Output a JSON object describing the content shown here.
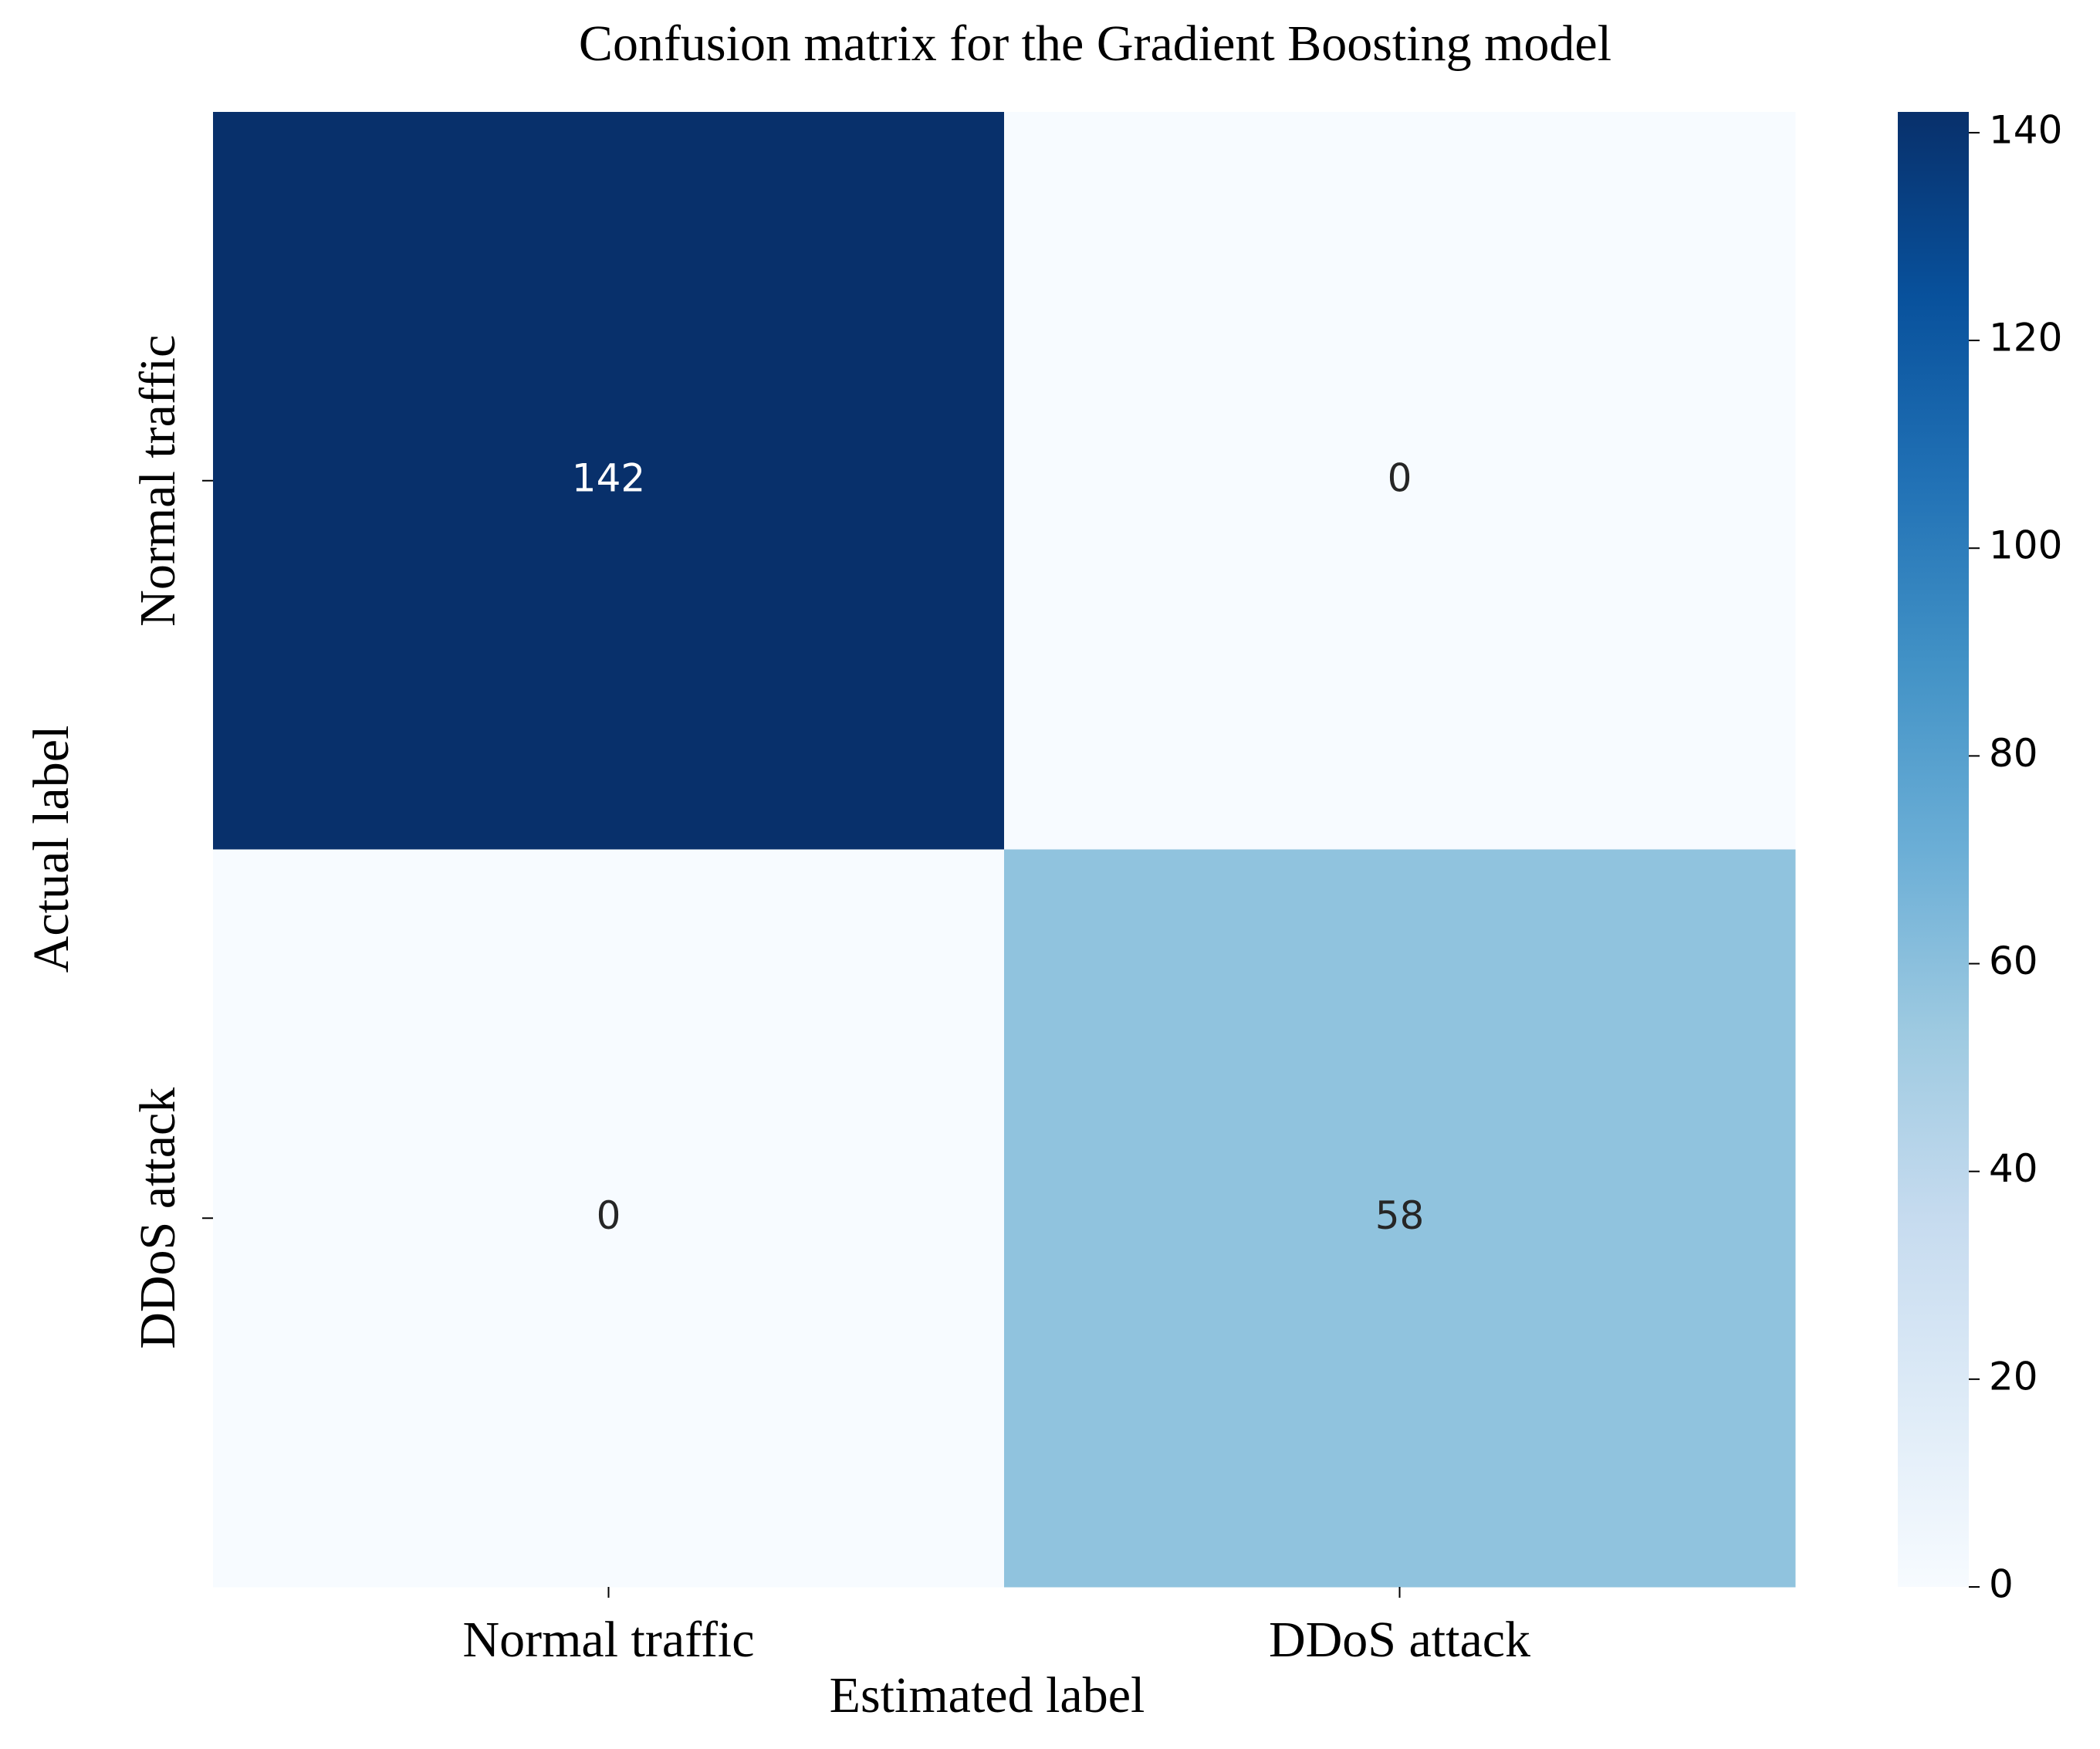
{
  "chart_data": {
    "type": "heatmap",
    "title": "Confusion matrix for the Gradient Boosting model",
    "xlabel": "Estimated label",
    "ylabel": "Actual label",
    "x_categories": [
      "Normal traffic",
      "DDoS attack"
    ],
    "y_categories": [
      "Normal traffic",
      "DDoS attack"
    ],
    "matrix": [
      [
        142,
        0
      ],
      [
        0,
        58
      ]
    ],
    "cell_labels": [
      [
        "142",
        "0"
      ],
      [
        "0",
        "58"
      ]
    ],
    "colormap": "Blues",
    "colorbar": {
      "range": [
        0,
        142
      ],
      "ticks": [
        0,
        20,
        40,
        60,
        80,
        100,
        120,
        140
      ],
      "tick_labels": [
        "0",
        "20",
        "40",
        "60",
        "80",
        "100",
        "120",
        "140"
      ]
    },
    "grid": false
  }
}
